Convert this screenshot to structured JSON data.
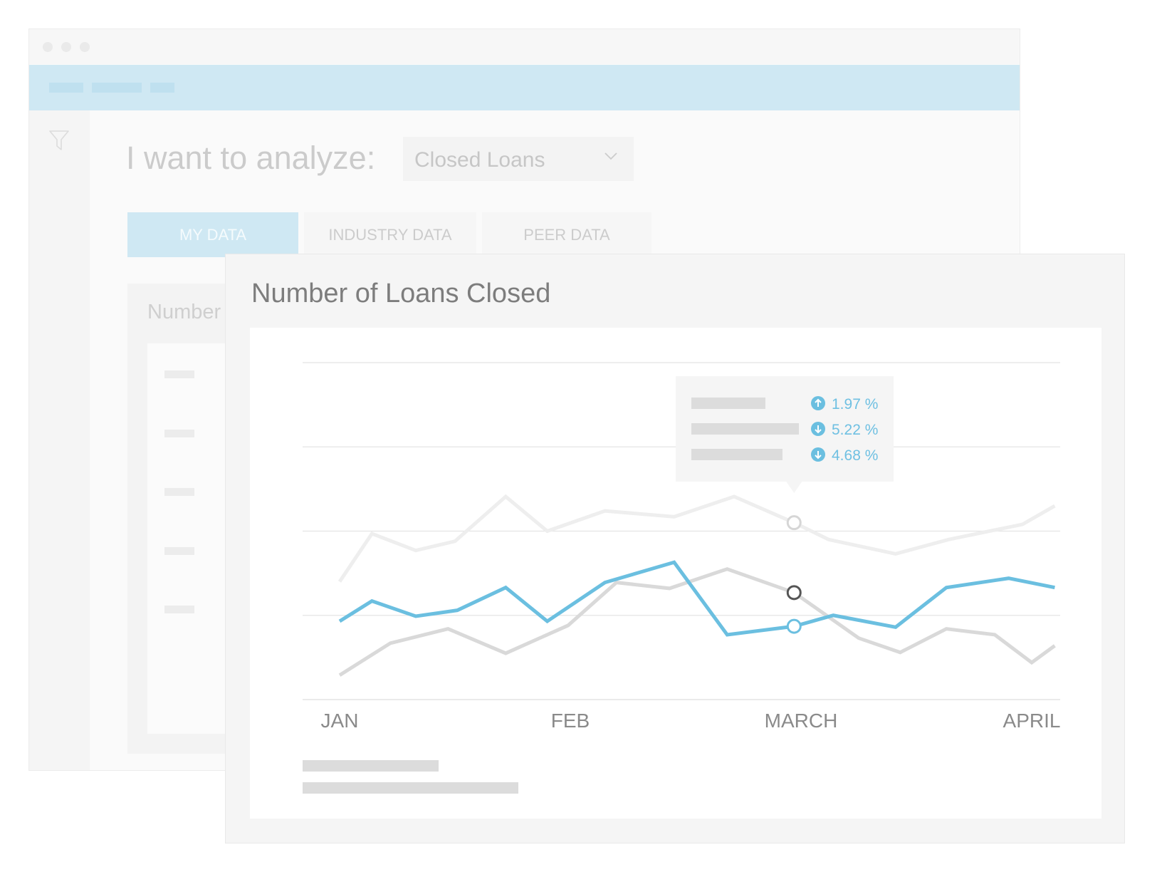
{
  "header": {
    "analyze_label": "I want to analyze:",
    "analyze_value": "Closed Loans"
  },
  "tabs": [
    {
      "label": "MY DATA",
      "active": true
    },
    {
      "label": "INDUSTRY DATA",
      "active": false
    },
    {
      "label": "PEER DATA",
      "active": false
    }
  ],
  "back_panel": {
    "title": "Number"
  },
  "colors": {
    "accent": "#6bbfe0",
    "muted_line": "#d9d9d9",
    "faint_line": "#eeeeee",
    "nav_band": "#cfe8f3"
  },
  "icons": [
    "filter-icon",
    "chevron-down-icon",
    "arrow-up-icon",
    "arrow-down-icon"
  ],
  "chart_data": {
    "type": "line",
    "title": "Number of Loans Closed",
    "categories": [
      "JAN",
      "FEB",
      "MARCH",
      "APRIL"
    ],
    "x_ticks": [
      "JAN",
      "FEB",
      "MARCH",
      "APRIL"
    ],
    "xlim": [
      0,
      3
    ],
    "ylim": [
      0,
      4
    ],
    "grid": true,
    "series": [
      {
        "color": "#eeeeee",
        "x": [
          0,
          0.14,
          0.33,
          0.5,
          0.72,
          0.9,
          1.15,
          1.45,
          1.71,
          1.97,
          2.12,
          2.41,
          2.64,
          2.96,
          3.1
        ],
        "y": [
          1.4,
          1.97,
          1.77,
          1.88,
          2.41,
          2.0,
          2.24,
          2.17,
          2.41,
          2.1,
          1.9,
          1.73,
          1.9,
          2.08,
          2.3
        ],
        "marker": {
          "x": 1.97,
          "y": 2.1
        }
      },
      {
        "color": "#d9d9d9",
        "x": [
          0,
          0.22,
          0.47,
          0.72,
          0.99,
          1.2,
          1.43,
          1.68,
          1.97,
          2.25,
          2.43,
          2.63,
          2.84,
          3.0,
          3.1
        ],
        "y": [
          0.29,
          0.67,
          0.84,
          0.55,
          0.88,
          1.39,
          1.32,
          1.55,
          1.27,
          0.73,
          0.56,
          0.84,
          0.77,
          0.44,
          0.64
        ]
      },
      {
        "color": "#6bbfe0",
        "x": [
          0,
          0.14,
          0.33,
          0.51,
          0.72,
          0.9,
          1.15,
          1.45,
          1.68,
          1.97,
          2.14,
          2.41,
          2.63,
          2.9,
          3.1
        ],
        "y": [
          0.93,
          1.17,
          0.99,
          1.06,
          1.33,
          0.93,
          1.39,
          1.63,
          0.77,
          0.87,
          1.0,
          0.86,
          1.33,
          1.44,
          1.33
        ],
        "marker": {
          "x": 1.97,
          "y": 0.87
        }
      }
    ],
    "highlight_marker": {
      "x": 1.97,
      "y": 1.27
    },
    "tooltip": [
      {
        "direction": "up",
        "text": "1.97 %"
      },
      {
        "direction": "down",
        "text": "5.22 %"
      },
      {
        "direction": "down",
        "text": "4.68 %"
      }
    ]
  }
}
